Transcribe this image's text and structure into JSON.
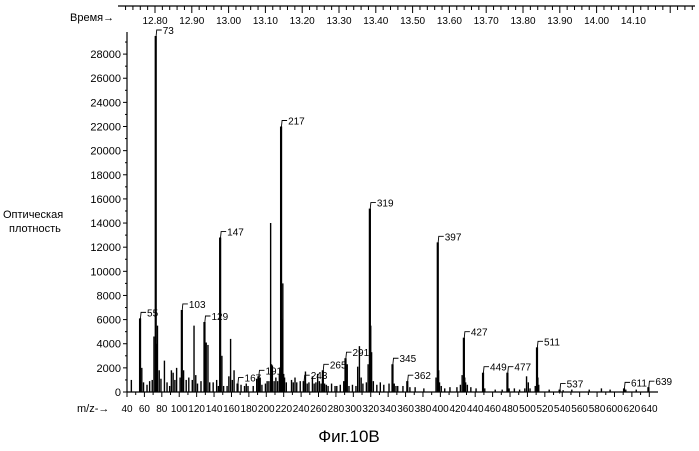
{
  "chart_data": {
    "type": "bar",
    "title": "",
    "caption": "Фиг.10B",
    "ylabel_line1": "Оптическая",
    "ylabel_line2": "плотность",
    "xlabel": "m/z-→",
    "time_label": "Время→",
    "xlim": [
      40,
      650
    ],
    "ylim": [
      0,
      29500
    ],
    "x_ticks": [
      40,
      60,
      80,
      100,
      120,
      140,
      160,
      180,
      200,
      220,
      240,
      260,
      280,
      300,
      320,
      340,
      360,
      380,
      400,
      420,
      440,
      460,
      480,
      500,
      520,
      540,
      560,
      580,
      600,
      620,
      640
    ],
    "y_ticks": [
      0,
      2000,
      4000,
      6000,
      8000,
      10000,
      12000,
      14000,
      16000,
      18000,
      20000,
      22000,
      24000,
      26000,
      28000
    ],
    "time_ticks": [
      "12.80",
      "12.90",
      "13.00",
      "13.10",
      "13.20",
      "13.30",
      "13.40",
      "13.50",
      "13.60",
      "13.70",
      "13.80",
      "13.90",
      "14.00",
      "14.10"
    ],
    "labeled_peaks": [
      {
        "mz": 55,
        "value": 6100,
        "label": "55"
      },
      {
        "mz": 73,
        "value": 29500,
        "label": "73"
      },
      {
        "mz": 103,
        "value": 6800,
        "label": "103"
      },
      {
        "mz": 129,
        "value": 5800,
        "label": "129"
      },
      {
        "mz": 147,
        "value": 12800,
        "label": "147"
      },
      {
        "mz": 167,
        "value": 700,
        "label": "167"
      },
      {
        "mz": 191,
        "value": 1300,
        "label": "191"
      },
      {
        "mz": 217,
        "value": 22000,
        "label": "217"
      },
      {
        "mz": 243,
        "value": 900,
        "label": "243"
      },
      {
        "mz": 265,
        "value": 1800,
        "label": "265"
      },
      {
        "mz": 291,
        "value": 2800,
        "label": "291"
      },
      {
        "mz": 319,
        "value": 15200,
        "label": "319"
      },
      {
        "mz": 345,
        "value": 2300,
        "label": "345"
      },
      {
        "mz": 362,
        "value": 900,
        "label": "362"
      },
      {
        "mz": 397,
        "value": 12400,
        "label": "397"
      },
      {
        "mz": 427,
        "value": 4500,
        "label": "427"
      },
      {
        "mz": 449,
        "value": 1600,
        "label": "449"
      },
      {
        "mz": 477,
        "value": 1600,
        "label": "477"
      },
      {
        "mz": 511,
        "value": 3700,
        "label": "511"
      },
      {
        "mz": 537,
        "value": 200,
        "label": "537"
      },
      {
        "mz": 611,
        "value": 300,
        "label": "611"
      },
      {
        "mz": 639,
        "value": 400,
        "label": "639"
      }
    ],
    "other_peaks": [
      {
        "mz": 45,
        "value": 1000
      },
      {
        "mz": 57,
        "value": 2000
      },
      {
        "mz": 59,
        "value": 800
      },
      {
        "mz": 63,
        "value": 600
      },
      {
        "mz": 66,
        "value": 900
      },
      {
        "mz": 69,
        "value": 1000
      },
      {
        "mz": 71,
        "value": 4600
      },
      {
        "mz": 74,
        "value": 4000
      },
      {
        "mz": 75,
        "value": 5500
      },
      {
        "mz": 77,
        "value": 1800
      },
      {
        "mz": 79,
        "value": 1100
      },
      {
        "mz": 83,
        "value": 2600
      },
      {
        "mz": 86,
        "value": 800
      },
      {
        "mz": 89,
        "value": 500
      },
      {
        "mz": 91,
        "value": 1800
      },
      {
        "mz": 93,
        "value": 1600
      },
      {
        "mz": 95,
        "value": 1000
      },
      {
        "mz": 97,
        "value": 2000
      },
      {
        "mz": 101,
        "value": 1200
      },
      {
        "mz": 105,
        "value": 1800
      },
      {
        "mz": 108,
        "value": 1000
      },
      {
        "mz": 111,
        "value": 1200
      },
      {
        "mz": 115,
        "value": 1000
      },
      {
        "mz": 117,
        "value": 5500
      },
      {
        "mz": 119,
        "value": 1400
      },
      {
        "mz": 121,
        "value": 700
      },
      {
        "mz": 125,
        "value": 900
      },
      {
        "mz": 131,
        "value": 4100
      },
      {
        "mz": 133,
        "value": 3900
      },
      {
        "mz": 135,
        "value": 800
      },
      {
        "mz": 139,
        "value": 800
      },
      {
        "mz": 143,
        "value": 1000
      },
      {
        "mz": 145,
        "value": 500
      },
      {
        "mz": 149,
        "value": 3000
      },
      {
        "mz": 151,
        "value": 500
      },
      {
        "mz": 155,
        "value": 500
      },
      {
        "mz": 157,
        "value": 1300
      },
      {
        "mz": 159,
        "value": 4400
      },
      {
        "mz": 161,
        "value": 1000
      },
      {
        "mz": 163,
        "value": 1800
      },
      {
        "mz": 171,
        "value": 600
      },
      {
        "mz": 175,
        "value": 500
      },
      {
        "mz": 177,
        "value": 700
      },
      {
        "mz": 179,
        "value": 500
      },
      {
        "mz": 185,
        "value": 500
      },
      {
        "mz": 189,
        "value": 1100
      },
      {
        "mz": 193,
        "value": 1200
      },
      {
        "mz": 195,
        "value": 600
      },
      {
        "mz": 199,
        "value": 700
      },
      {
        "mz": 201,
        "value": 900
      },
      {
        "mz": 203,
        "value": 900
      },
      {
        "mz": 205,
        "value": 14000
      },
      {
        "mz": 206,
        "value": 2300
      },
      {
        "mz": 207,
        "value": 2200
      },
      {
        "mz": 209,
        "value": 900
      },
      {
        "mz": 211,
        "value": 1200
      },
      {
        "mz": 213,
        "value": 900
      },
      {
        "mz": 215,
        "value": 1500
      },
      {
        "mz": 218,
        "value": 6000
      },
      {
        "mz": 219,
        "value": 9000
      },
      {
        "mz": 220,
        "value": 1500
      },
      {
        "mz": 221,
        "value": 1200
      },
      {
        "mz": 223,
        "value": 800
      },
      {
        "mz": 229,
        "value": 1000
      },
      {
        "mz": 231,
        "value": 800
      },
      {
        "mz": 233,
        "value": 1200
      },
      {
        "mz": 235,
        "value": 800
      },
      {
        "mz": 239,
        "value": 900
      },
      {
        "mz": 245,
        "value": 1700
      },
      {
        "mz": 247,
        "value": 700
      },
      {
        "mz": 249,
        "value": 800
      },
      {
        "mz": 253,
        "value": 1300
      },
      {
        "mz": 255,
        "value": 700
      },
      {
        "mz": 257,
        "value": 800
      },
      {
        "mz": 259,
        "value": 1500
      },
      {
        "mz": 261,
        "value": 900
      },
      {
        "mz": 263,
        "value": 700
      },
      {
        "mz": 267,
        "value": 700
      },
      {
        "mz": 269,
        "value": 600
      },
      {
        "mz": 271,
        "value": 500
      },
      {
        "mz": 275,
        "value": 700
      },
      {
        "mz": 279,
        "value": 500
      },
      {
        "mz": 281,
        "value": 500
      },
      {
        "mz": 285,
        "value": 600
      },
      {
        "mz": 289,
        "value": 900
      },
      {
        "mz": 293,
        "value": 2300
      },
      {
        "mz": 295,
        "value": 500
      },
      {
        "mz": 299,
        "value": 600
      },
      {
        "mz": 303,
        "value": 500
      },
      {
        "mz": 305,
        "value": 2100
      },
      {
        "mz": 307,
        "value": 3800
      },
      {
        "mz": 309,
        "value": 1200
      },
      {
        "mz": 311,
        "value": 700
      },
      {
        "mz": 315,
        "value": 800
      },
      {
        "mz": 317,
        "value": 2300
      },
      {
        "mz": 320,
        "value": 5500
      },
      {
        "mz": 321,
        "value": 3300
      },
      {
        "mz": 323,
        "value": 900
      },
      {
        "mz": 327,
        "value": 600
      },
      {
        "mz": 331,
        "value": 800
      },
      {
        "mz": 335,
        "value": 600
      },
      {
        "mz": 341,
        "value": 700
      },
      {
        "mz": 347,
        "value": 700
      },
      {
        "mz": 349,
        "value": 500
      },
      {
        "mz": 351,
        "value": 500
      },
      {
        "mz": 357,
        "value": 500
      },
      {
        "mz": 365,
        "value": 400
      },
      {
        "mz": 371,
        "value": 400
      },
      {
        "mz": 381,
        "value": 300
      },
      {
        "mz": 395,
        "value": 1200
      },
      {
        "mz": 398,
        "value": 1800
      },
      {
        "mz": 399,
        "value": 800
      },
      {
        "mz": 401,
        "value": 500
      },
      {
        "mz": 405,
        "value": 300
      },
      {
        "mz": 411,
        "value": 400
      },
      {
        "mz": 419,
        "value": 400
      },
      {
        "mz": 423,
        "value": 600
      },
      {
        "mz": 425,
        "value": 1400
      },
      {
        "mz": 428,
        "value": 1200
      },
      {
        "mz": 429,
        "value": 800
      },
      {
        "mz": 431,
        "value": 600
      },
      {
        "mz": 435,
        "value": 400
      },
      {
        "mz": 441,
        "value": 300
      },
      {
        "mz": 451,
        "value": 300
      },
      {
        "mz": 463,
        "value": 200
      },
      {
        "mz": 471,
        "value": 200
      },
      {
        "mz": 479,
        "value": 300
      },
      {
        "mz": 485,
        "value": 300
      },
      {
        "mz": 491,
        "value": 200
      },
      {
        "mz": 497,
        "value": 300
      },
      {
        "mz": 499,
        "value": 1300
      },
      {
        "mz": 501,
        "value": 800
      },
      {
        "mz": 503,
        "value": 300
      },
      {
        "mz": 509,
        "value": 500
      },
      {
        "mz": 512,
        "value": 1200
      },
      {
        "mz": 513,
        "value": 600
      },
      {
        "mz": 525,
        "value": 200
      },
      {
        "mz": 541,
        "value": 150
      },
      {
        "mz": 551,
        "value": 200
      },
      {
        "mz": 571,
        "value": 200
      },
      {
        "mz": 585,
        "value": 300
      },
      {
        "mz": 595,
        "value": 200
      },
      {
        "mz": 613,
        "value": 200
      },
      {
        "mz": 625,
        "value": 200
      }
    ]
  }
}
